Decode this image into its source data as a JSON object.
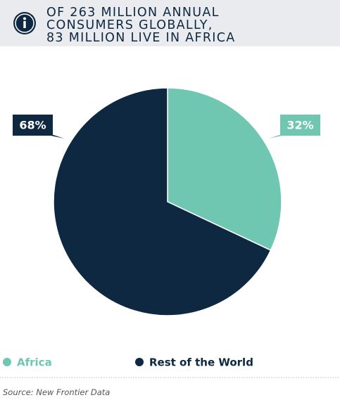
{
  "chart_data": {
    "type": "pie",
    "title": [
      "OF 263 MILLION ANNUAL",
      "CONSUMERS GLOBALLY,",
      "83 MILLION LIVE IN AFRICA"
    ],
    "categories": [
      "Africa",
      "Rest of the World"
    ],
    "values": [
      32,
      68
    ],
    "value_labels": [
      "32%",
      "68%"
    ],
    "colors": [
      "#6fc7b1",
      "#0d2840"
    ],
    "source": "Source: New Frontier Data"
  }
}
